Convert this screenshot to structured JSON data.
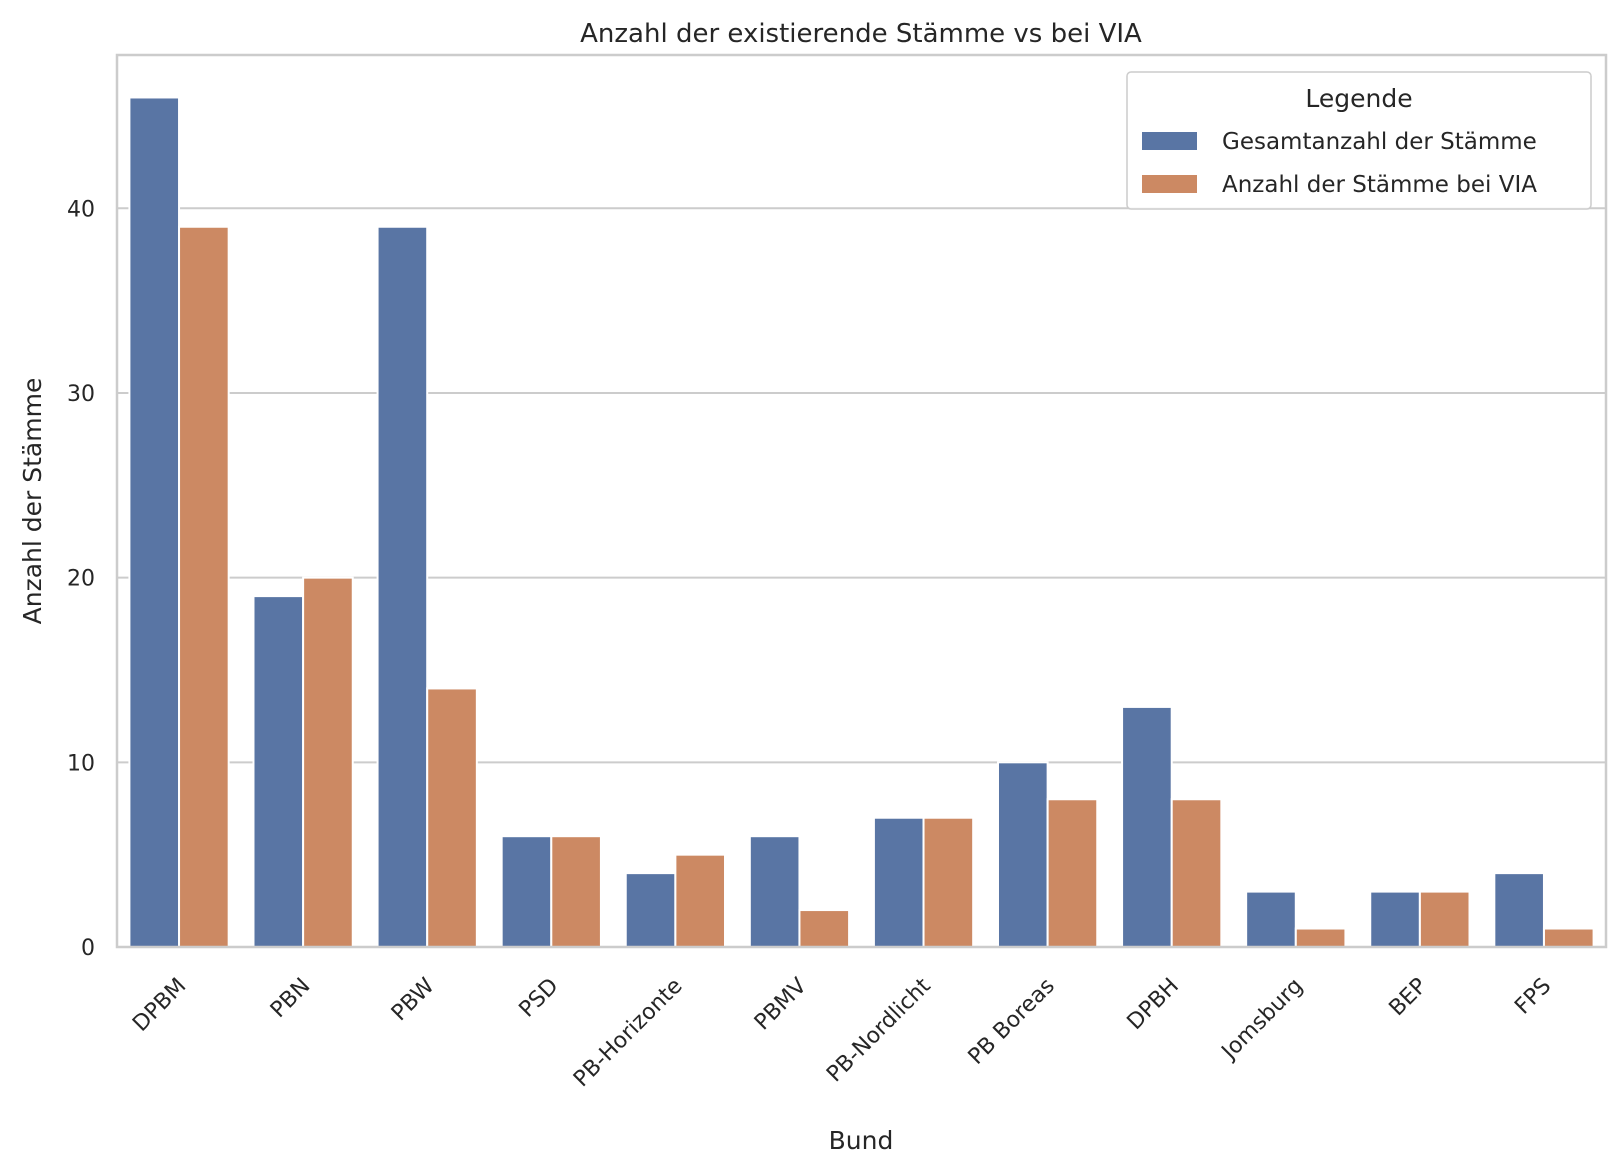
{
  "chart_data": {
    "type": "bar",
    "title": "Anzahl der existierende Stämme vs bei VIA",
    "xlabel": "Bund",
    "ylabel": "Anzahl der Stämme",
    "categories": [
      "DPBM",
      "PBN",
      "PBW",
      "PSD",
      "PB-Horizonte",
      "PBMV",
      "PB-Nordlicht",
      "PB Boreas",
      "DPBH",
      "Jomsburg",
      "BEP",
      "FPS"
    ],
    "series": [
      {
        "name": "Gesamtanzahl der Stämme",
        "color": "#5975a4",
        "values": [
          46,
          19,
          39,
          6,
          4,
          6,
          7,
          10,
          13,
          3,
          3,
          4
        ]
      },
      {
        "name": "Anzahl der Stämme bei VIA",
        "color": "#cc8963",
        "values": [
          39,
          20,
          14,
          6,
          5,
          2,
          7,
          8,
          8,
          1,
          3,
          1
        ]
      }
    ],
    "ylim": [
      0,
      48.3
    ],
    "yticks": [
      0,
      10,
      20,
      30,
      40
    ],
    "grid": true,
    "legend": {
      "title": "Legende",
      "position": "top-right"
    }
  }
}
